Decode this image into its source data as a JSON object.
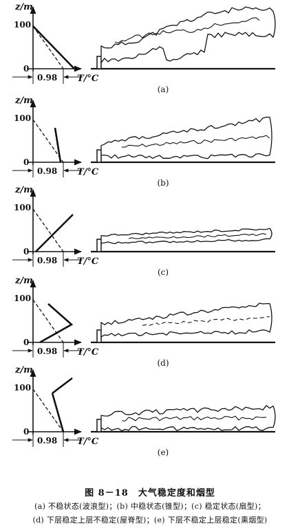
{
  "figure": {
    "axis_label_z": "z/m",
    "tick_100": "100",
    "tick_0": "0",
    "tick_098": "0.98",
    "axis_label_T": "T/°C",
    "panels": [
      {
        "label": "(a)"
      },
      {
        "label": "(b)"
      },
      {
        "label": "(c)"
      },
      {
        "label": "(d)"
      },
      {
        "label": "(e)"
      }
    ]
  },
  "caption": {
    "title": "图 8－18　大气稳定度和烟型",
    "line1": "(a) 不稳状态(波浪型)；(b) 中稳状态(锥型)；(c) 稳定状态(扇型)；",
    "line2": "(d) 下层稳定上层不稳定(屋脊型)；(e) 下层不稳定上层稳定(熏烟型)"
  }
}
